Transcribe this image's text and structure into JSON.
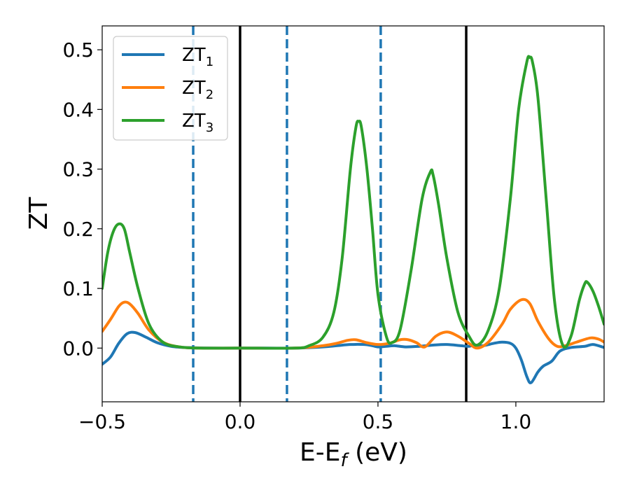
{
  "chart_data": {
    "type": "line",
    "xlabel": "E-E",
    "xlabel_sub": "f",
    "xlabel_unit": " (eV)",
    "ylabel": "ZT",
    "xlim": [
      -0.5,
      1.32
    ],
    "ylim": [
      -0.09,
      0.54
    ],
    "xticks": [
      -0.5,
      0.0,
      0.5,
      1.0
    ],
    "xtick_labels": [
      "−0.5",
      "0.0",
      "0.5",
      "1.0"
    ],
    "yticks": [
      0.0,
      0.1,
      0.2,
      0.3,
      0.4,
      0.5
    ],
    "ytick_labels": [
      "0.0",
      "0.1",
      "0.2",
      "0.3",
      "0.4",
      "0.5"
    ],
    "legend": {
      "placement": "upper-left"
    },
    "vlines": [
      {
        "x": -0.17,
        "style": "dashed",
        "color": "#1f77b4"
      },
      {
        "x": 0.0,
        "style": "solid",
        "color": "#000000"
      },
      {
        "x": 0.17,
        "style": "dashed",
        "color": "#1f77b4"
      },
      {
        "x": 0.51,
        "style": "dashed",
        "color": "#1f77b4"
      },
      {
        "x": 0.82,
        "style": "solid",
        "color": "#000000"
      }
    ],
    "series": [
      {
        "name": "ZT",
        "name_sub": "1",
        "color": "#1f77b4",
        "x": [
          -0.5,
          -0.47,
          -0.44,
          -0.41,
          -0.38,
          -0.34,
          -0.3,
          -0.25,
          -0.2,
          -0.1,
          0.0,
          0.1,
          0.2,
          0.3,
          0.35,
          0.4,
          0.45,
          0.48,
          0.5,
          0.53,
          0.56,
          0.6,
          0.65,
          0.7,
          0.75,
          0.8,
          0.83,
          0.85,
          0.88,
          0.92,
          0.95,
          0.98,
          1.0,
          1.02,
          1.04,
          1.055,
          1.08,
          1.1,
          1.13,
          1.16,
          1.2,
          1.25,
          1.28,
          1.32
        ],
        "y": [
          -0.027,
          -0.015,
          0.008,
          0.024,
          0.026,
          0.018,
          0.009,
          0.003,
          0.001,
          0.0,
          0.0,
          0.0,
          0.0,
          0.002,
          0.004,
          0.006,
          0.006,
          0.004,
          0.002,
          0.003,
          0.004,
          0.002,
          0.003,
          0.005,
          0.006,
          0.004,
          0.003,
          0.005,
          0.004,
          0.008,
          0.01,
          0.008,
          0.0,
          -0.02,
          -0.048,
          -0.058,
          -0.04,
          -0.03,
          -0.022,
          -0.005,
          0.001,
          0.003,
          0.006,
          0.001
        ]
      },
      {
        "name": "ZT",
        "name_sub": "2",
        "color": "#ff7f0e",
        "x": [
          -0.5,
          -0.47,
          -0.44,
          -0.42,
          -0.4,
          -0.37,
          -0.33,
          -0.28,
          -0.22,
          -0.15,
          0.0,
          0.2,
          0.3,
          0.35,
          0.39,
          0.42,
          0.46,
          0.5,
          0.54,
          0.58,
          0.61,
          0.64,
          0.67,
          0.71,
          0.75,
          0.79,
          0.83,
          0.86,
          0.9,
          0.95,
          0.98,
          1.02,
          1.05,
          1.08,
          1.12,
          1.15,
          1.18,
          1.22,
          1.27,
          1.3,
          1.32
        ],
        "y": [
          0.028,
          0.048,
          0.07,
          0.077,
          0.074,
          0.058,
          0.03,
          0.01,
          0.002,
          0.0,
          0.0,
          0.0,
          0.004,
          0.008,
          0.013,
          0.014,
          0.009,
          0.006,
          0.008,
          0.014,
          0.014,
          0.009,
          0.002,
          0.02,
          0.027,
          0.02,
          0.008,
          0.0,
          0.01,
          0.04,
          0.065,
          0.081,
          0.075,
          0.045,
          0.015,
          0.003,
          0.004,
          0.01,
          0.017,
          0.015,
          0.01
        ]
      },
      {
        "name": "ZT",
        "name_sub": "3",
        "color": "#2ca02c",
        "x": [
          -0.5,
          -0.48,
          -0.46,
          -0.44,
          -0.42,
          -0.4,
          -0.37,
          -0.33,
          -0.28,
          -0.22,
          -0.15,
          0.0,
          0.2,
          0.25,
          0.3,
          0.34,
          0.37,
          0.4,
          0.42,
          0.43,
          0.44,
          0.46,
          0.48,
          0.5,
          0.53,
          0.55,
          0.58,
          0.62,
          0.66,
          0.69,
          0.7,
          0.72,
          0.75,
          0.79,
          0.83,
          0.86,
          0.9,
          0.94,
          0.98,
          1.01,
          1.04,
          1.05,
          1.06,
          1.08,
          1.11,
          1.14,
          1.17,
          1.2,
          1.23,
          1.25,
          1.26,
          1.28,
          1.3,
          1.32
        ],
        "y": [
          0.1,
          0.16,
          0.195,
          0.208,
          0.2,
          0.16,
          0.1,
          0.04,
          0.01,
          0.002,
          0.0,
          0.0,
          0.0,
          0.004,
          0.018,
          0.06,
          0.15,
          0.3,
          0.37,
          0.38,
          0.37,
          0.3,
          0.2,
          0.09,
          0.02,
          0.009,
          0.03,
          0.13,
          0.25,
          0.295,
          0.29,
          0.24,
          0.15,
          0.06,
          0.02,
          0.005,
          0.03,
          0.1,
          0.25,
          0.4,
          0.48,
          0.487,
          0.48,
          0.42,
          0.25,
          0.08,
          0.005,
          0.02,
          0.08,
          0.108,
          0.11,
          0.095,
          0.07,
          0.04
        ]
      }
    ]
  }
}
